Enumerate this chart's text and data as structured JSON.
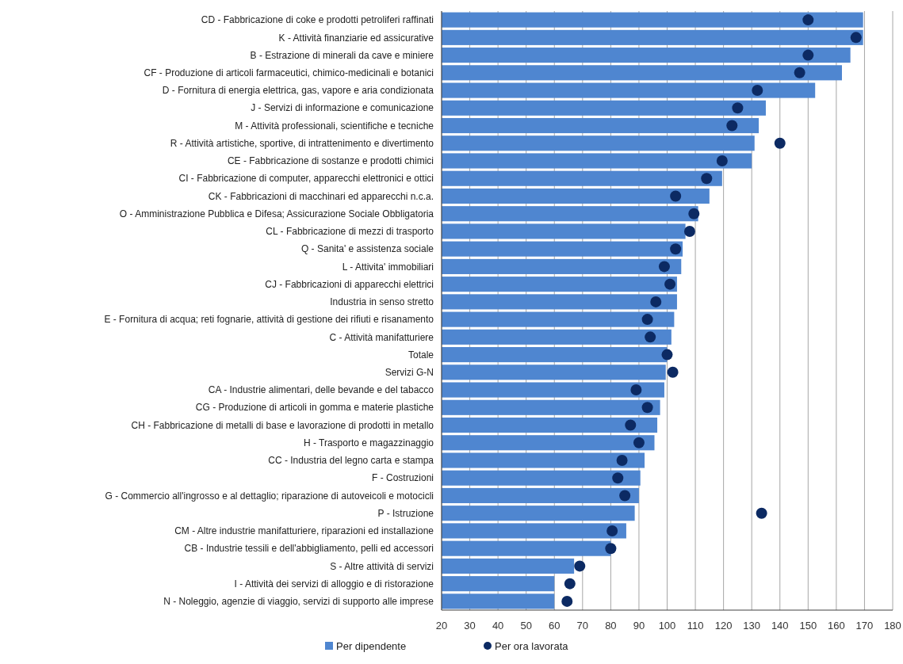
{
  "chart_data": {
    "type": "bar",
    "orientation": "horizontal",
    "categories": [
      "CD - Fabbricazione di coke e prodotti petroliferi raffinati",
      "K - Attività finanziarie ed assicurative",
      "B - Estrazione di minerali da cave e miniere",
      "CF - Produzione di articoli farmaceutici, chimico-medicinali e botanici",
      "D - Fornitura di energia elettrica, gas, vapore e aria condizionata",
      "J - Servizi di informazione e comunicazione",
      "M - Attività professionali, scientifiche e tecniche",
      "R - Attività artistiche, sportive, di intrattenimento e divertimento",
      "CE - Fabbricazione di sostanze e prodotti chimici",
      "CI - Fabbricazione di computer, apparecchi elettronici e ottici",
      "CK - Fabbricazioni di macchinari ed apparecchi n.c.a.",
      "O - Amministrazione Pubblica e Difesa; Assicurazione Sociale Obbligatoria",
      "CL - Fabbricazione di mezzi di trasporto",
      "Q - Sanita' e assistenza sociale",
      "L - Attivita' immobiliari",
      "CJ - Fabbricazioni di apparecchi elettrici",
      "Industria in senso stretto",
      "E - Fornitura di acqua; reti fognarie, attività di gestione dei rifiuti e risanamento",
      "C - Attività manifatturiere",
      "Totale",
      "Servizi G-N",
      "CA - Industrie alimentari, delle bevande e del tabacco",
      "CG - Produzione di articoli in gomma e materie plastiche",
      "CH - Fabbricazione di metalli di base e lavorazione di prodotti in metallo",
      "H - Trasporto e magazzinaggio",
      "CC - Industria del legno carta e stampa",
      "F - Costruzioni",
      "G - Commercio all'ingrosso e al dettaglio; riparazione di autoveicoli e motocicli",
      "P - Istruzione",
      "CM - Altre industrie manifatturiere, riparazioni ed installazione",
      "CB - Industrie tessili e dell'abbigliamento, pelli ed accessori",
      "S - Altre attività di servizi",
      "I - Attività dei servizi di alloggio e di ristorazione",
      "N - Noleggio, agenzie di viaggio, servizi di supporto alle imprese"
    ],
    "series": [
      {
        "name": "Per dipendente",
        "color": "#4f86d0",
        "values": [
          169.5,
          169.5,
          165,
          162,
          152.5,
          135,
          132.5,
          131,
          130,
          119.5,
          115,
          111,
          106.5,
          105.5,
          105,
          103.5,
          103.5,
          102.5,
          101.5,
          100,
          99.5,
          99,
          97.5,
          96.5,
          95.5,
          92,
          90.5,
          90,
          88.5,
          85.5,
          80,
          67,
          60,
          60
        ]
      },
      {
        "name": "Per ora lavorata",
        "type": "scatter",
        "color": "#0c2a63",
        "marker": "circle",
        "values": [
          150,
          167,
          150,
          147,
          132,
          125,
          123,
          140,
          119.5,
          114,
          103,
          109.5,
          108,
          103,
          99,
          101,
          96,
          93,
          94,
          100,
          102,
          89,
          93,
          87,
          90,
          84,
          82.5,
          85,
          133.5,
          80.5,
          80,
          69,
          65.5,
          64.5
        ]
      }
    ],
    "xlim": [
      20,
      180
    ],
    "xticks": [
      20,
      30,
      40,
      50,
      60,
      70,
      80,
      90,
      100,
      110,
      120,
      130,
      140,
      150,
      160,
      170,
      180
    ],
    "grid": "x",
    "legend": "bottom"
  }
}
